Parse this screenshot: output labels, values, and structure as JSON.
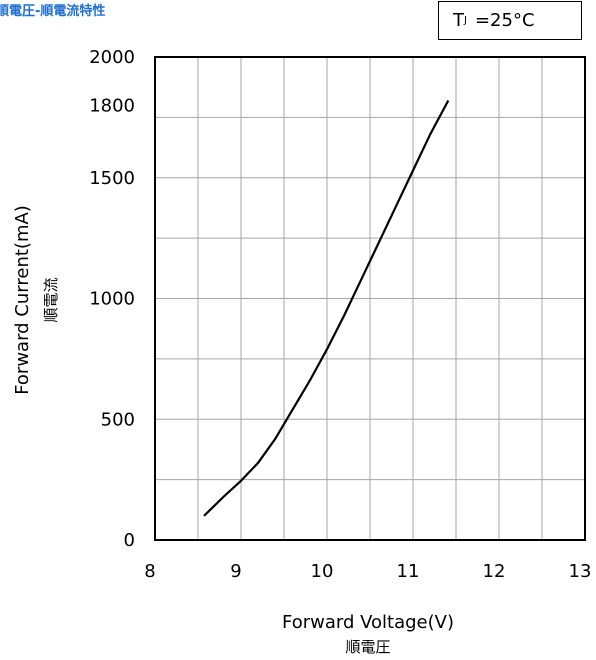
{
  "colors": {
    "accent": "#1f6fd1",
    "curve": "#000000",
    "grid": "#a6a6a6"
  },
  "header": {
    "title": "順電圧-順電流特性",
    "temp_symbol": "T",
    "temp_subscript": "J",
    "temp_value": "=25°C"
  },
  "chart_data": {
    "type": "line",
    "title": "順電圧-順電流特性",
    "xlabel": "Forward Voltage(V)",
    "xlabel_sub": "順電圧",
    "ylabel": "Forward Current(mA)",
    "ylabel_sub": "順電流",
    "xlim": [
      8,
      13
    ],
    "ylim": [
      0,
      2000
    ],
    "x_ticks": [
      8,
      9,
      10,
      11,
      12,
      13
    ],
    "y_ticks": [
      0,
      500,
      1000,
      1500,
      1800,
      2000
    ],
    "grid": true,
    "annotation": "TJ =25°C",
    "series": [
      {
        "x": [
          8.57,
          8.8,
          9.0,
          9.2,
          9.4,
          9.6,
          9.8,
          10.0,
          10.2,
          10.4,
          10.6,
          10.8,
          11.0,
          11.2,
          11.41
        ],
        "y": [
          100,
          180,
          245,
          320,
          420,
          540,
          660,
          790,
          930,
          1080,
          1230,
          1380,
          1530,
          1680,
          1820
        ]
      }
    ]
  }
}
